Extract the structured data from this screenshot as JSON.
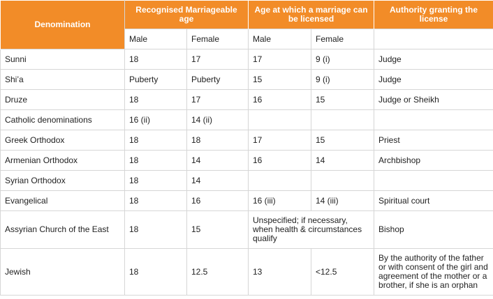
{
  "headers": {
    "denomination": "Denomination",
    "marriageable_age": "Recognised Marriageable age",
    "licensed_age": "Age at which a marriage can be licensed",
    "authority": "Authority granting the license",
    "male": "Male",
    "female": "Female"
  },
  "rows": [
    {
      "denomination": "Sunni",
      "ma_male": "18",
      "ma_female": "17",
      "la_male": "17",
      "la_female": "9 (i)",
      "authority": "Judge"
    },
    {
      "denomination": "Shi’a",
      "ma_male": "Puberty",
      "ma_female": "Puberty",
      "la_male": "15",
      "la_female": "9 (i)",
      "authority": "Judge"
    },
    {
      "denomination": "Druze",
      "ma_male": "18",
      "ma_female": "17",
      "la_male": "16",
      "la_female": "15",
      "authority": "Judge or Sheikh"
    },
    {
      "denomination": "Catholic denominations",
      "ma_male": "16 (ii)",
      "ma_female": "14 (ii)",
      "la_male": "",
      "la_female": "",
      "authority": ""
    },
    {
      "denomination": "Greek Orthodox",
      "ma_male": "18",
      "ma_female": "18",
      "la_male": "17",
      "la_female": "15",
      "authority": "Priest"
    },
    {
      "denomination": "Armenian Orthodox",
      "ma_male": "18",
      "ma_female": "14",
      "la_male": "16",
      "la_female": "14",
      "authority": "Archbishop"
    },
    {
      "denomination": "Syrian Orthodox",
      "ma_male": "18",
      "ma_female": "14",
      "la_male": "",
      "la_female": "",
      "authority": ""
    },
    {
      "denomination": "Evangelical",
      "ma_male": "18",
      "ma_female": "16",
      "la_male": "16 (iii)",
      "la_female": "14 (iii)",
      "authority": "Spiritual court"
    },
    {
      "denomination": "Assyrian Church of the East",
      "ma_male": "18",
      "ma_female": "15",
      "la_combined": "Unspecified; if necessary, when health & circumstances qualify",
      "authority": "Bishop"
    },
    {
      "denomination": "Jewish",
      "ma_male": "18",
      "ma_female": "12.5",
      "la_male": "13",
      "la_female": "<12.5",
      "authority": "By the authority of the father or with consent of the girl and agreement of the mother or a brother, if she is an orphan"
    }
  ]
}
